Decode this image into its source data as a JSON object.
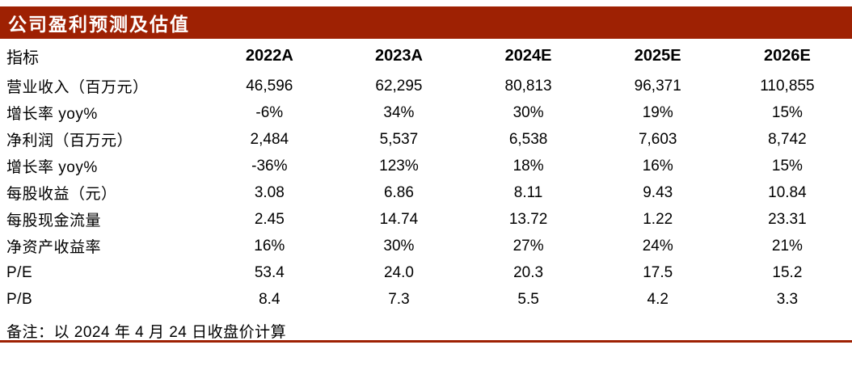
{
  "page": {
    "title": "公司盈利预测及估值",
    "footnote": "备注：以 2024 年 4 月 24 日收盘价计算"
  },
  "colors": {
    "accent_red": "#9E2103",
    "title_text": "#FFFFFF",
    "body_text": "#000000",
    "background": "#FFFFFF"
  },
  "chart_data": {
    "type": "table",
    "title": "公司盈利预测及估值",
    "columns": [
      "指标",
      "2022A",
      "2023A",
      "2024E",
      "2025E",
      "2026E"
    ],
    "rows": [
      {
        "label": "营业收入（百万元）",
        "values": [
          "46,596",
          "62,295",
          "80,813",
          "96,371",
          "110,855"
        ]
      },
      {
        "label": "增长率 yoy%",
        "values": [
          "-6%",
          "34%",
          "30%",
          "19%",
          "15%"
        ]
      },
      {
        "label": "净利润（百万元）",
        "values": [
          "2,484",
          "5,537",
          "6,538",
          "7,603",
          "8,742"
        ]
      },
      {
        "label": "增长率 yoy%",
        "values": [
          "-36%",
          "123%",
          "18%",
          "16%",
          "15%"
        ]
      },
      {
        "label": "每股收益（元）",
        "values": [
          "3.08",
          "6.86",
          "8.11",
          "9.43",
          "10.84"
        ]
      },
      {
        "label": "每股现金流量",
        "values": [
          "2.45",
          "14.74",
          "13.72",
          "1.22",
          "23.31"
        ]
      },
      {
        "label": "净资产收益率",
        "values": [
          "16%",
          "30%",
          "27%",
          "24%",
          "21%"
        ]
      },
      {
        "label": "P/E",
        "values": [
          "53.4",
          "24.0",
          "20.3",
          "17.5",
          "15.2"
        ]
      },
      {
        "label": "P/B",
        "values": [
          "8.4",
          "7.3",
          "5.5",
          "4.2",
          "3.3"
        ]
      }
    ],
    "footnote": "备注：以 2024 年 4 月 24 日收盘价计算",
    "layout": {
      "header_row_bold": true,
      "value_alignment": "center",
      "grid": "none"
    }
  }
}
